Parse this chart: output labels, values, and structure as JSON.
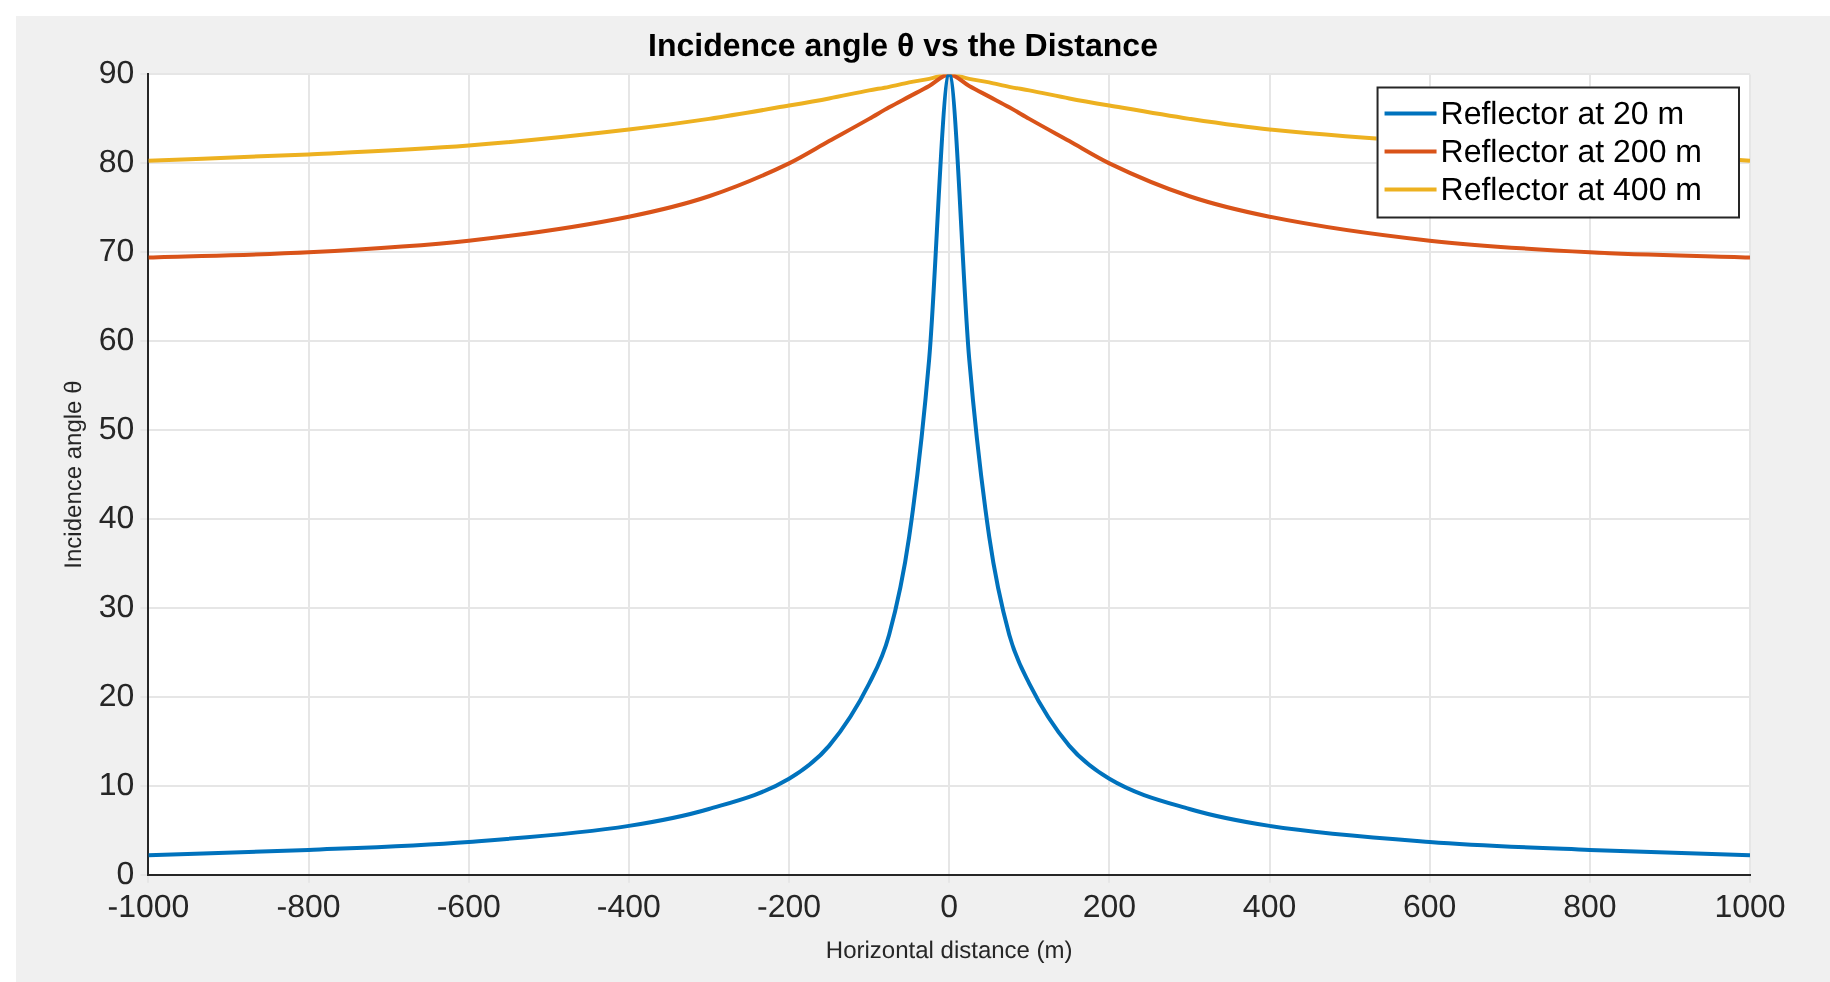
{
  "chart_data": {
    "type": "line",
    "title": "Incidence angle θ vs the Distance",
    "xlabel": "Horizontal distance (m)",
    "ylabel": "Incidence angle θ",
    "x": [
      -1000,
      -800,
      -600,
      -400,
      -300,
      -200,
      -150,
      -100,
      -75,
      -50,
      -25,
      0,
      25,
      50,
      75,
      100,
      150,
      200,
      300,
      400,
      600,
      800,
      1000
    ],
    "series": [
      {
        "name": "Reflector at 20 m",
        "color": "#0072bd",
        "values": [
          2.2,
          2.8,
          3.7,
          5.5,
          7.4,
          10.8,
          14.5,
          21.5,
          27,
          38,
          58,
          90,
          58,
          38,
          27,
          21.5,
          14.5,
          10.8,
          7.4,
          5.5,
          3.7,
          2.8,
          2.2
        ]
      },
      {
        "name": "Reflector at 200 m",
        "color": "#d95319",
        "values": [
          69.4,
          70.0,
          71.3,
          74.0,
          76.3,
          80.0,
          82.5,
          85,
          86.3,
          87.5,
          88.7,
          90,
          88.7,
          87.5,
          86.3,
          85,
          82.5,
          80.0,
          76.3,
          74.0,
          71.3,
          70.0,
          69.4
        ]
      },
      {
        "name": "Reflector at 400 m",
        "color": "#edb120",
        "values": [
          80.3,
          81.0,
          82.0,
          83.8,
          85,
          86.5,
          87.3,
          88.2,
          88.6,
          89.1,
          89.5,
          90,
          89.5,
          89.1,
          88.6,
          88.2,
          87.3,
          86.5,
          85,
          83.8,
          null,
          null,
          80.3
        ]
      }
    ],
    "xlim": [
      -1000,
      1000
    ],
    "xticks": [
      -1000,
      -800,
      -600,
      -400,
      -200,
      0,
      200,
      400,
      600,
      800,
      1000
    ],
    "ylim": [
      0,
      90
    ],
    "yticks": [
      0,
      10,
      20,
      30,
      40,
      50,
      60,
      70,
      80,
      90
    ],
    "grid": true,
    "legend": "top right",
    "marker": "none",
    "line_style": "solid"
  }
}
